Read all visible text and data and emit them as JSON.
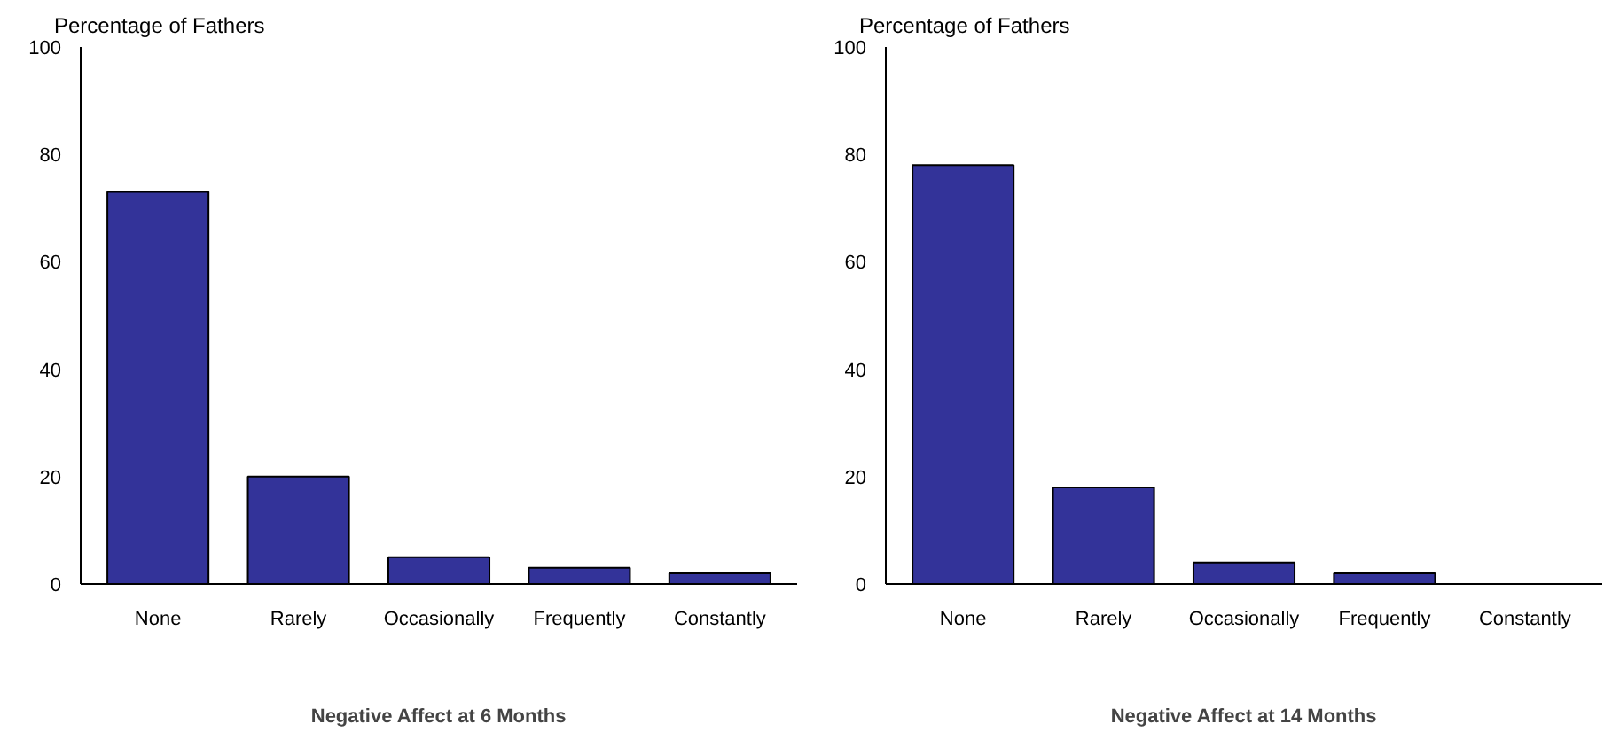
{
  "chart_data": [
    {
      "type": "bar",
      "ylabel": "Percentage of Fathers",
      "xlabel": "Negative Affect at 6 Months",
      "categories": [
        "None",
        "Rarely",
        "Occasionally",
        "Frequently",
        "Constantly"
      ],
      "values": [
        73,
        20,
        5,
        3,
        2
      ],
      "color": "#333399",
      "ylim": [
        0,
        100
      ],
      "yticks": [
        0,
        20,
        40,
        60,
        80,
        100
      ],
      "grid": false
    },
    {
      "type": "bar",
      "ylabel": "Percentage of Fathers",
      "xlabel": "Negative Affect at 14 Months",
      "categories": [
        "None",
        "Rarely",
        "Occasionally",
        "Frequently",
        "Constantly"
      ],
      "values": [
        78,
        18,
        4,
        2,
        0
      ],
      "color": "#333399",
      "ylim": [
        0,
        100
      ],
      "yticks": [
        0,
        20,
        40,
        60,
        80,
        100
      ],
      "grid": false
    }
  ]
}
